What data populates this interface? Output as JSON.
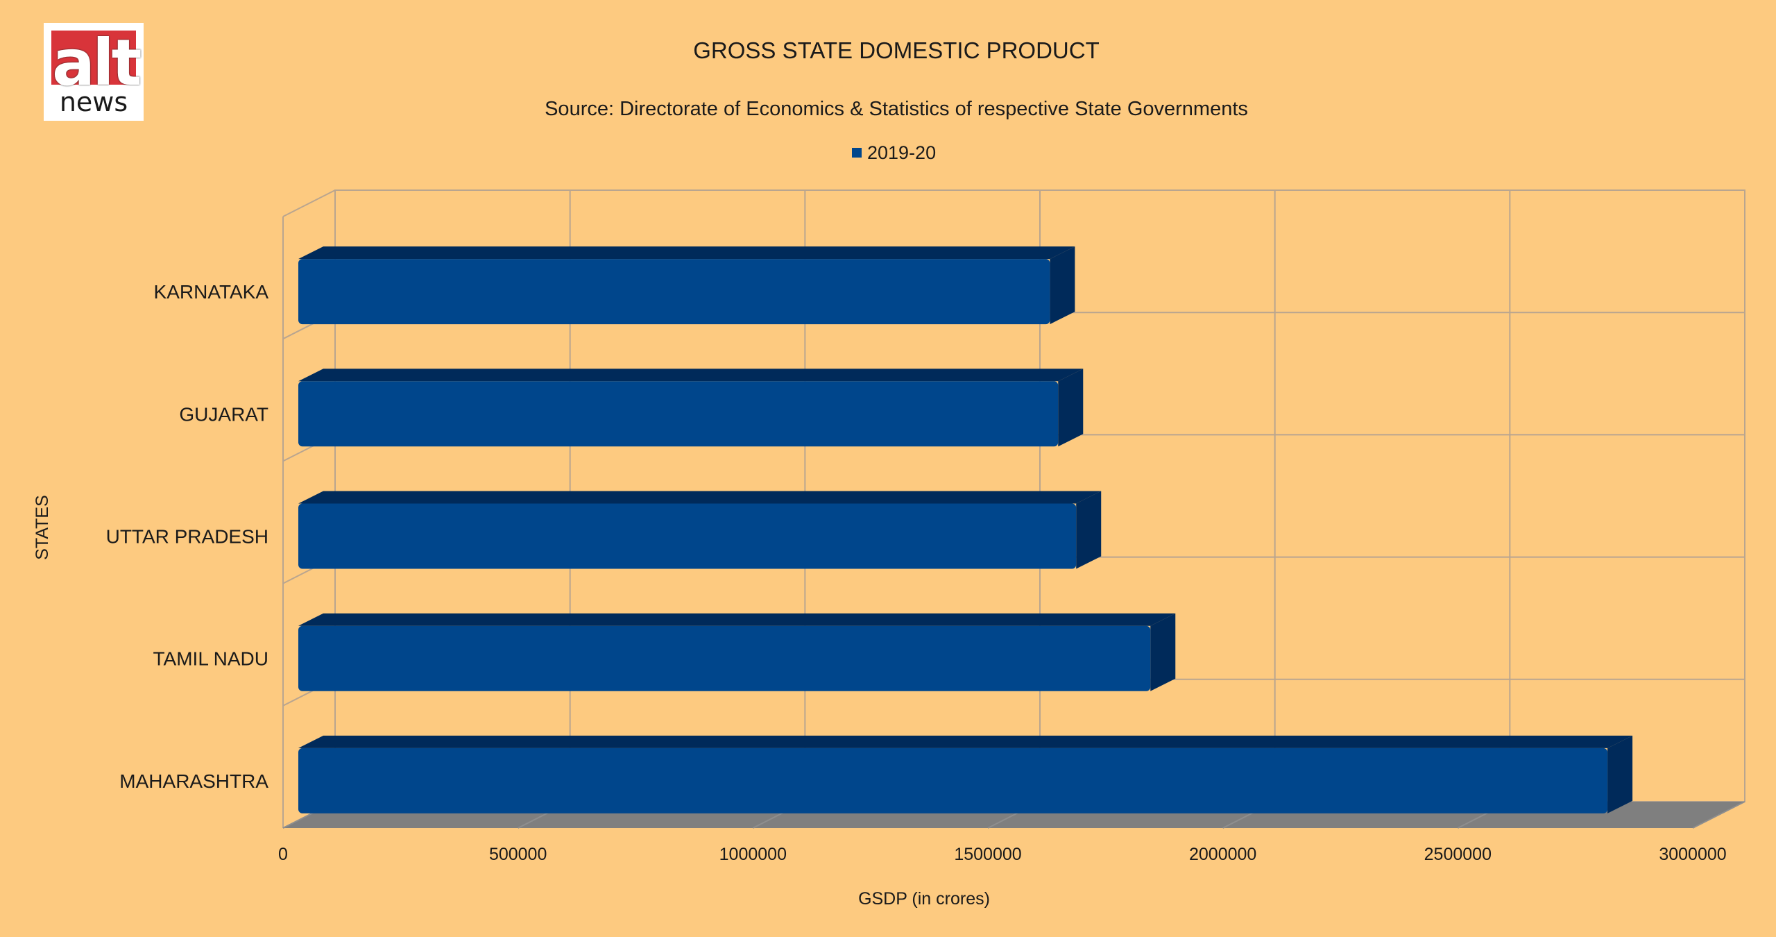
{
  "logo": {
    "brand_top": "alt",
    "brand_bottom": "news"
  },
  "chart_data": {
    "type": "bar",
    "orientation": "horizontal",
    "title": "GROSS STATE DOMESTIC PRODUCT",
    "subtitle": "Source:  Directorate of Economics & Statistics of respective State Governments",
    "xlabel": "GSDP (in crores)",
    "ylabel": "STATES",
    "categories": [
      "KARNATAKA",
      "GUJARAT",
      "UTTAR PRADESH",
      "TAMIL NADU",
      "MAHARASHTRA"
    ],
    "series": [
      {
        "name": "2019-20",
        "values": [
          1631977,
          1649505,
          1687818,
          1845853,
          2818555
        ]
      }
    ],
    "xlim": [
      0,
      3000000
    ],
    "xticks": [
      "0",
      "500000",
      "1000000",
      "1500000",
      "2000000",
      "2500000",
      "3000000"
    ],
    "legend": "top-center",
    "grid": true,
    "colors": {
      "background": "#fdca80",
      "bar": "#00468c",
      "bar_dark": "#002a5a",
      "floor": "#7f7f7f",
      "grid": "#b9a58f"
    }
  }
}
